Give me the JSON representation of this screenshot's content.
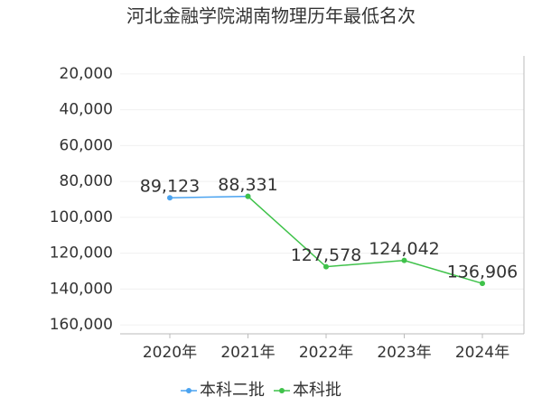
{
  "chart_data": {
    "type": "line",
    "title": "河北金融学院湖南物理历年最低名次",
    "categories": [
      "2020年",
      "2021年",
      "2022年",
      "2023年",
      "2024年"
    ],
    "series": [
      {
        "name": "本科二批",
        "color": "#4aa3f0",
        "values": [
          89123,
          88331,
          null,
          null,
          null
        ],
        "value_labels": [
          "89,123",
          null,
          null,
          null,
          null
        ]
      },
      {
        "name": "本科批",
        "color": "#3fc24a",
        "values": [
          null,
          88331,
          127578,
          124042,
          136906
        ],
        "value_labels": [
          null,
          "88,331",
          "127,578",
          "124,042",
          "136,906"
        ]
      }
    ],
    "ylim": [
      10000,
      165000
    ],
    "y_inverted": true,
    "yticks": [
      {
        "value": 20000,
        "label": "20,000"
      },
      {
        "value": 40000,
        "label": "40,000"
      },
      {
        "value": 60000,
        "label": "60,000"
      },
      {
        "value": 80000,
        "label": "80,000"
      },
      {
        "value": 100000,
        "label": "100,000"
      },
      {
        "value": 120000,
        "label": "120,000"
      },
      {
        "value": 140000,
        "label": "140,000"
      },
      {
        "value": 160000,
        "label": "160,000"
      }
    ],
    "grid": true
  }
}
